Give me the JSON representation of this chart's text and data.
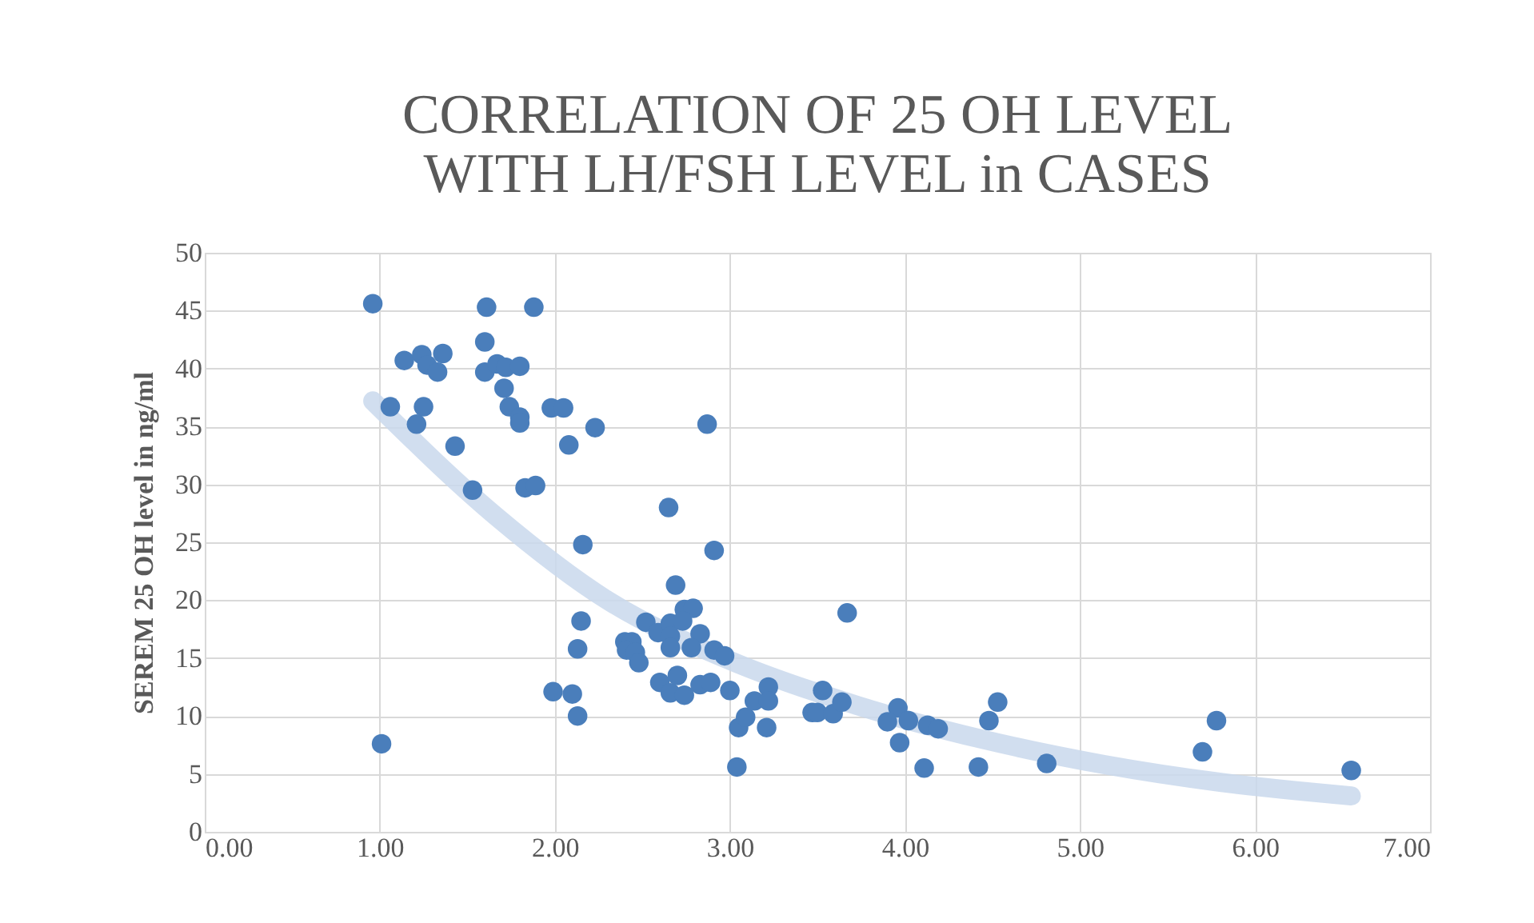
{
  "chart_data": {
    "type": "scatter",
    "title": [
      "CORRELATION OF 25 OH LEVEL",
      "WITH LH/FSH LEVEL in CASES"
    ],
    "ylabel": "SEREM 25 OH level in ng/ml",
    "xlim": [
      0,
      7
    ],
    "xticks": [
      {
        "value": 0,
        "label": "0.00"
      },
      {
        "value": 1,
        "label": "1.00"
      },
      {
        "value": 2,
        "label": "2.00"
      },
      {
        "value": 3,
        "label": "3.00"
      },
      {
        "value": 4,
        "label": "4.00"
      },
      {
        "value": 5,
        "label": "5.00"
      },
      {
        "value": 6,
        "label": "6.00"
      },
      {
        "value": 7,
        "label": "7.00"
      }
    ],
    "ylim": [
      0,
      50
    ],
    "yticks": [
      0,
      5,
      10,
      15,
      20,
      25,
      30,
      35,
      40,
      45,
      50
    ],
    "grid": true,
    "legend": false,
    "series": [
      {
        "type": "line",
        "marker": "none",
        "color": "#c9d8ec",
        "x": [
          0.96,
          1.66,
          2.3,
          3.0,
          3.73,
          4.44,
          5.14,
          5.84,
          6.55
        ],
        "values": [
          37.2,
          27.3,
          20.0,
          14.8,
          10.9,
          8.0,
          5.8,
          4.2,
          3.1
        ]
      },
      {
        "marker": "circle",
        "color": "#4a7ebb",
        "x": [
          0.96,
          1.61,
          1.88,
          1.14,
          1.24,
          1.36,
          1.27,
          1.33,
          1.6,
          1.6,
          1.67,
          1.72,
          1.8,
          1.71,
          1.06,
          1.25,
          1.21,
          1.74,
          1.8,
          1.8,
          1.98,
          2.05,
          2.23,
          1.43,
          2.08,
          1.53,
          1.83,
          1.89,
          2.65,
          2.16,
          2.69,
          1.01,
          2.87,
          2.91,
          2.74,
          2.79,
          2.15,
          2.52,
          2.59,
          2.66,
          2.73,
          2.83,
          2.66,
          2.66,
          2.78,
          2.13,
          2.4,
          2.44,
          2.41,
          2.46,
          2.48,
          2.91,
          2.97,
          1.99,
          2.1,
          2.13,
          2.6,
          2.66,
          2.7,
          2.74,
          2.83,
          2.89,
          3.0,
          3.22,
          3.05,
          3.09,
          3.14,
          3.22,
          3.21,
          3.04,
          3.47,
          3.5,
          3.53,
          3.67,
          3.59,
          3.64,
          3.96,
          3.9,
          4.02,
          3.97,
          4.13,
          4.19,
          4.11,
          4.42,
          4.48,
          4.53,
          4.81,
          5.78,
          5.7,
          6.55
        ],
        "values": [
          45.6,
          45.3,
          45.3,
          40.7,
          41.2,
          41.3,
          40.3,
          39.7,
          42.3,
          39.7,
          40.4,
          40.1,
          40.2,
          38.3,
          36.7,
          36.7,
          35.2,
          36.7,
          35.8,
          35.3,
          36.6,
          36.6,
          34.9,
          33.3,
          33.4,
          29.5,
          29.7,
          29.9,
          28.0,
          24.8,
          21.3,
          7.6,
          35.2,
          24.3,
          19.2,
          19.3,
          18.2,
          18.1,
          17.2,
          18.0,
          18.2,
          17.1,
          16.9,
          15.9,
          15.9,
          15.8,
          16.4,
          16.4,
          15.7,
          15.5,
          14.6,
          15.7,
          15.2,
          12.1,
          11.9,
          10.0,
          12.9,
          12.0,
          13.5,
          11.8,
          12.7,
          12.9,
          12.2,
          12.5,
          9.0,
          9.9,
          11.3,
          11.3,
          9.0,
          5.6,
          10.3,
          10.3,
          12.2,
          18.9,
          10.2,
          11.2,
          10.7,
          9.5,
          9.6,
          7.7,
          9.2,
          8.9,
          5.5,
          5.6,
          9.6,
          11.2,
          5.9,
          9.6,
          6.9,
          5.3
        ]
      }
    ]
  }
}
